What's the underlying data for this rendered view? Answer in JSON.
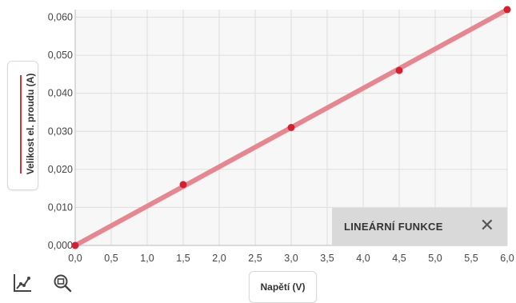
{
  "chart_data": {
    "type": "line",
    "xlabel": "Napětí (V)",
    "ylabel": "Velikost el. proudu (A)",
    "x_ticks": [
      "0,0",
      "0,5",
      "1,0",
      "1,5",
      "2,0",
      "2,5",
      "3,0",
      "3,5",
      "4,0",
      "4,5",
      "5,0",
      "5,5",
      "6,0"
    ],
    "y_ticks": [
      "0,000",
      "0,010",
      "0,020",
      "0,030",
      "0,040",
      "0,050",
      "0,060"
    ],
    "xlim": [
      0,
      6
    ],
    "ylim": [
      0,
      0.062
    ],
    "grid": true,
    "points": [
      {
        "x": 0.0,
        "y": 0.0
      },
      {
        "x": 1.5,
        "y": 0.016
      },
      {
        "x": 3.0,
        "y": 0.031
      },
      {
        "x": 4.5,
        "y": 0.046
      },
      {
        "x": 6.0,
        "y": 0.062
      }
    ],
    "fit_line": {
      "x": [
        0,
        6
      ],
      "y": [
        0,
        0.062
      ]
    },
    "colors": {
      "line": "#e8868f",
      "point": "#d6202f",
      "plot_bg": "#f7f7f7",
      "grid": "#dedede"
    }
  },
  "overlay": {
    "title": "LINEÁRNÍ FUNKCE",
    "close_icon": "close-icon"
  },
  "toolbar": {
    "icons": [
      "line-chart-icon",
      "zoom-icon"
    ]
  }
}
